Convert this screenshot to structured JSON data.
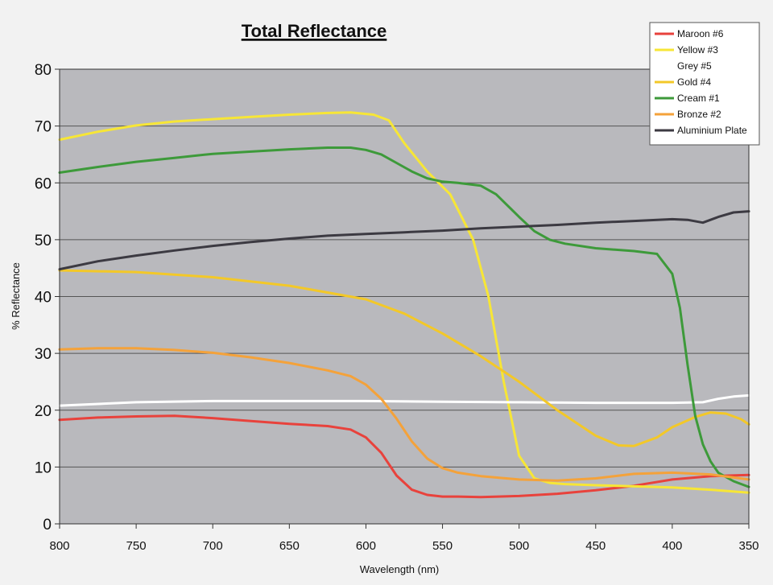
{
  "chart_data": {
    "type": "line",
    "title": "Total Reflectance",
    "xlabel": "Wavelength (nm)",
    "ylabel": "% Reflectance",
    "xlim": [
      800,
      350
    ],
    "ylim": [
      0,
      80
    ],
    "x_ticks": [
      "800",
      "750",
      "700",
      "650",
      "600",
      "550",
      "500",
      "450",
      "400",
      "350"
    ],
    "y_ticks": [
      "0",
      "10",
      "20",
      "30",
      "40",
      "50",
      "60",
      "70",
      "80"
    ],
    "grid": true,
    "legend_position": "top-right",
    "plot_background": "#b9b9bd",
    "page_background": "#f2f2f2",
    "series": [
      {
        "name": "Maroon #6",
        "color": "#e8423c",
        "x": [
          800,
          775,
          750,
          725,
          700,
          675,
          650,
          625,
          610,
          600,
          590,
          580,
          570,
          560,
          550,
          540,
          525,
          500,
          475,
          450,
          425,
          400,
          375,
          350
        ],
        "y": [
          18.3,
          18.7,
          18.9,
          19.0,
          18.6,
          18.1,
          17.6,
          17.2,
          16.6,
          15.2,
          12.5,
          8.5,
          6.0,
          5.1,
          4.8,
          4.8,
          4.7,
          4.9,
          5.3,
          5.9,
          6.7,
          7.8,
          8.4,
          8.6
        ]
      },
      {
        "name": "Yellow #3",
        "color": "#f7e636",
        "x": [
          800,
          775,
          750,
          725,
          700,
          675,
          650,
          625,
          610,
          595,
          585,
          575,
          560,
          545,
          530,
          520,
          510,
          500,
          490,
          480,
          470,
          450,
          425,
          400,
          375,
          350
        ],
        "y": [
          67.6,
          69.0,
          70.1,
          70.8,
          71.2,
          71.6,
          72.0,
          72.3,
          72.4,
          72.0,
          71.0,
          67.0,
          62.0,
          58.0,
          50.0,
          40.0,
          25.0,
          12.0,
          8.0,
          7.2,
          7.0,
          6.8,
          6.6,
          6.4,
          6.0,
          5.5
        ]
      },
      {
        "name": "Grey #5",
        "color": "#ffffff",
        "x": [
          800,
          750,
          700,
          650,
          600,
          550,
          500,
          450,
          400,
          380,
          370,
          360,
          350
        ],
        "y": [
          20.8,
          21.4,
          21.6,
          21.6,
          21.6,
          21.5,
          21.4,
          21.3,
          21.3,
          21.4,
          22.0,
          22.4,
          22.6
        ]
      },
      {
        "name": "Gold #4",
        "color": "#f3c828",
        "x": [
          800,
          750,
          700,
          650,
          600,
          575,
          550,
          525,
          500,
          475,
          450,
          435,
          425,
          410,
          400,
          385,
          375,
          365,
          355,
          350
        ],
        "y": [
          44.6,
          44.3,
          43.4,
          41.9,
          39.5,
          37.0,
          33.5,
          29.5,
          25.0,
          20.0,
          15.5,
          13.8,
          13.7,
          15.2,
          17.0,
          18.8,
          19.6,
          19.4,
          18.4,
          17.5
        ]
      },
      {
        "name": "Cream #1",
        "color": "#3d9a3a",
        "x": [
          800,
          775,
          750,
          725,
          700,
          675,
          650,
          625,
          610,
          600,
          590,
          580,
          570,
          560,
          550,
          540,
          525,
          515,
          500,
          490,
          480,
          470,
          450,
          425,
          410,
          400,
          395,
          390,
          385,
          380,
          375,
          370,
          360,
          350
        ],
        "y": [
          61.8,
          62.8,
          63.7,
          64.4,
          65.1,
          65.5,
          65.9,
          66.2,
          66.2,
          65.8,
          65.0,
          63.5,
          62.0,
          60.8,
          60.2,
          60.0,
          59.5,
          58.0,
          54.0,
          51.5,
          50.0,
          49.3,
          48.5,
          48.0,
          47.5,
          44.0,
          38.0,
          28.0,
          19.0,
          14.0,
          11.0,
          9.0,
          7.5,
          6.5
        ]
      },
      {
        "name": "Bronze #2",
        "color": "#f4a23a",
        "x": [
          800,
          775,
          750,
          725,
          700,
          675,
          650,
          625,
          610,
          600,
          590,
          580,
          575,
          570,
          560,
          550,
          540,
          525,
          500,
          475,
          450,
          425,
          400,
          375,
          350
        ],
        "y": [
          30.7,
          30.9,
          30.9,
          30.6,
          30.1,
          29.3,
          28.3,
          27.0,
          26.0,
          24.5,
          22.0,
          18.5,
          16.5,
          14.5,
          11.5,
          9.8,
          9.0,
          8.4,
          7.8,
          7.6,
          8.0,
          8.8,
          9.0,
          8.7,
          7.8
        ]
      },
      {
        "name": "Aluminium Plate",
        "color": "#3c3a42",
        "x": [
          800,
          775,
          750,
          725,
          700,
          675,
          650,
          625,
          600,
          575,
          550,
          525,
          500,
          475,
          450,
          425,
          400,
          390,
          380,
          370,
          360,
          350
        ],
        "y": [
          44.8,
          46.2,
          47.2,
          48.1,
          48.9,
          49.6,
          50.2,
          50.7,
          51.0,
          51.3,
          51.6,
          52.0,
          52.3,
          52.6,
          53.0,
          53.3,
          53.6,
          53.5,
          53.0,
          54.0,
          54.8,
          55.0
        ]
      }
    ]
  }
}
